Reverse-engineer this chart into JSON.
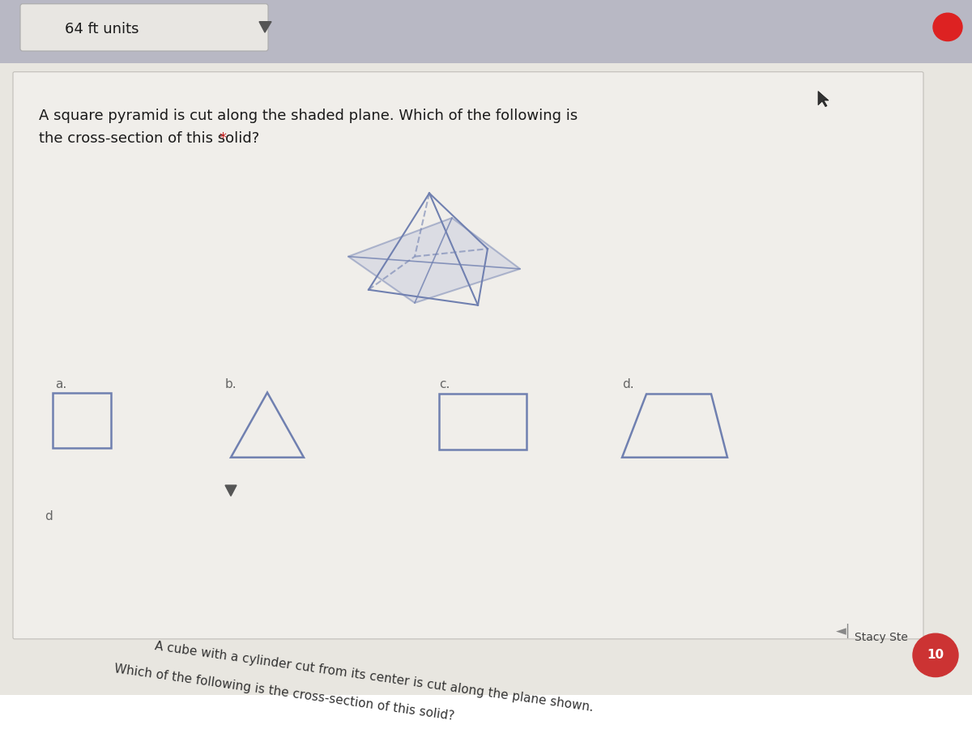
{
  "bg_top": "#b8b8c4",
  "bg_card": "#f0eeea",
  "bg_main": "#e8e6e0",
  "text_color": "#1a1a1a",
  "shape_color": "#7080b0",
  "shape_linewidth": 1.5,
  "question1_line1": "A square pyramid is cut along the shaded plane. Which of the following is",
  "question1_line2": "the cross-section of this solid? ",
  "question1_star": "*",
  "question2_line1": "A cube with a cylinder cut from its center is cut along the plane shown.",
  "question2_line2": "Which of the following is the cross-section of this solid?",
  "label_a": "a.",
  "label_b": "b.",
  "label_c": "c.",
  "label_d_opt": "d.",
  "label_d2": "d",
  "top_text": "64 ft units",
  "stacy_text": "Stacy Ste",
  "font_size_question": 13,
  "font_size_label": 11
}
